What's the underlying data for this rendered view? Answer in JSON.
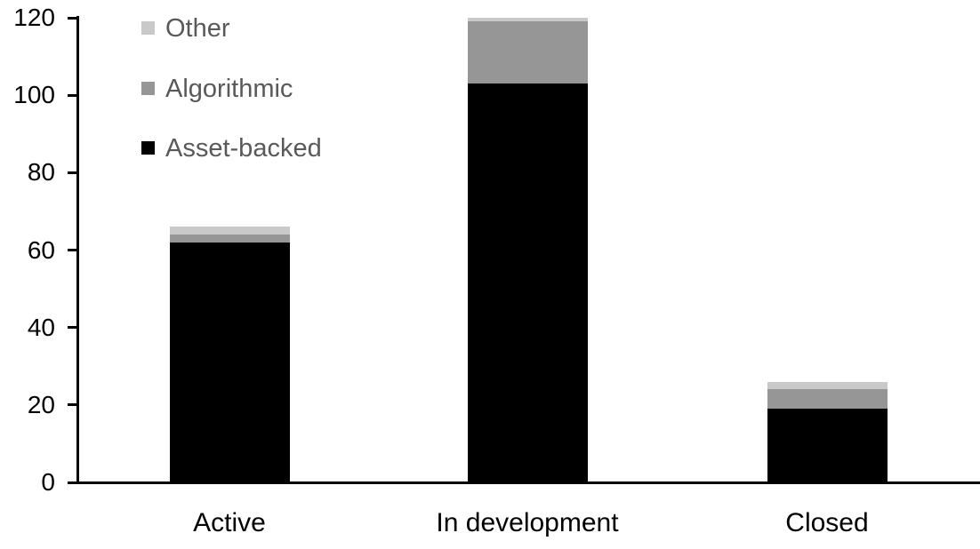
{
  "chart_data": {
    "type": "bar",
    "stacked": true,
    "title": "",
    "categories": [
      "Active",
      "In development",
      "Closed"
    ],
    "series": [
      {
        "name": "Asset-backed",
        "color": "#000000",
        "values": [
          62,
          103,
          19
        ]
      },
      {
        "name": "Algorithmic",
        "color": "#969696",
        "values": [
          2,
          16,
          5
        ]
      },
      {
        "name": "Other",
        "color": "#c9c9c9",
        "values": [
          2,
          1,
          2
        ]
      }
    ],
    "y_axis": {
      "min": 0,
      "max": 120,
      "tick_interval": 20,
      "ticks": [
        0,
        20,
        40,
        60,
        80,
        100,
        120
      ]
    },
    "x_axis": {
      "labels": [
        "Active",
        "In development",
        "Closed"
      ]
    },
    "legend": {
      "position": "top-left",
      "order": [
        "Other",
        "Algorithmic",
        "Asset-backed"
      ],
      "text_color": "#595959"
    },
    "grid": false,
    "axis_color": "#000000",
    "tick_label_color": "#000000",
    "background": "#ffffff"
  }
}
